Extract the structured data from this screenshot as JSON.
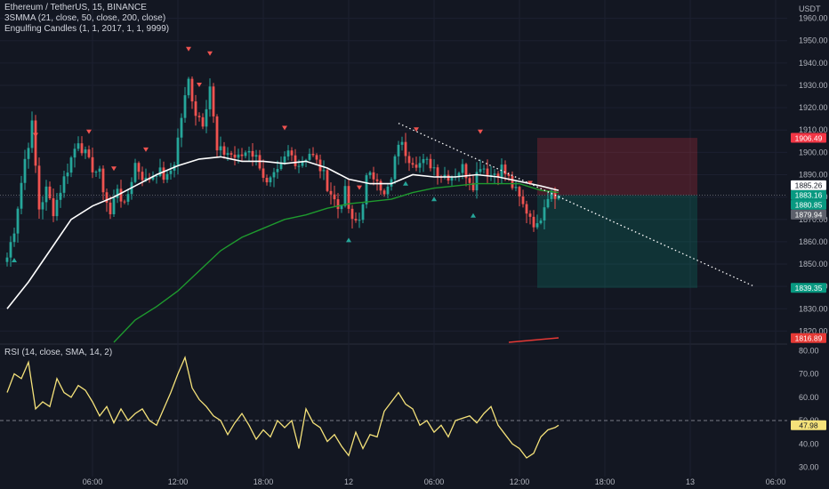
{
  "header": {
    "symbol_line": "Ethereum / TetherUS, 15, BINANCE",
    "indicator_1": "3SMMA (21, close, 50, close, 200, close)",
    "indicator_2": "Engulfing Candles (1, 1, 2017, 1, 1, 9999)",
    "currency": "USDT"
  },
  "rsi_panel": {
    "title": "RSI (14, close, SMA, 14, 2)"
  },
  "colors": {
    "background": "#131722",
    "up": "#26a69a",
    "down": "#ef5350",
    "sma21": "#ffffff",
    "sma50": "#1e9a2e",
    "sma200": "#e53935",
    "rsi": "#f5e27a",
    "stop_zone": "rgba(242,54,69,0.22)",
    "target_zone": "rgba(8,153,129,0.22)"
  },
  "chart_data": [
    {
      "type": "candlestick",
      "title": "Ethereum / TetherUS, 15, BINANCE",
      "ylabel": "USDT",
      "ylim": [
        1815,
        1965
      ],
      "yticks": [
        1820,
        1830,
        1840,
        1850,
        1860,
        1870,
        1880,
        1890,
        1900,
        1910,
        1920,
        1930,
        1940,
        1950,
        1960
      ],
      "ytick_labels": [
        "1820.00",
        "1830.00",
        "1840.00",
        "1850.00",
        "1860.00",
        "1870.00",
        "1880.00",
        "1890.00",
        "1900.00",
        "1910.00",
        "1920.00",
        "1930.00",
        "1940.00",
        "1950.00",
        "1960.00"
      ],
      "xticks": [
        {
          "label": "06:00",
          "bar": 24
        },
        {
          "label": "12:00",
          "bar": 48
        },
        {
          "label": "18:00",
          "bar": 72
        },
        {
          "label": "12",
          "bar": 96
        },
        {
          "label": "06:00",
          "bar": 120
        },
        {
          "label": "12:00",
          "bar": 144
        },
        {
          "label": "18:00",
          "bar": 168
        },
        {
          "label": "13",
          "bar": 192
        },
        {
          "label": "06:00",
          "bar": 216
        }
      ],
      "last_bar": 155,
      "anchors": [
        [
          0,
          1853
        ],
        [
          2,
          1866
        ],
        [
          5,
          1897
        ],
        [
          7,
          1912
        ],
        [
          9,
          1875
        ],
        [
          11,
          1883
        ],
        [
          13,
          1874
        ],
        [
          17,
          1893
        ],
        [
          20,
          1906
        ],
        [
          23,
          1895
        ],
        [
          26,
          1890
        ],
        [
          29,
          1872
        ],
        [
          31,
          1885
        ],
        [
          33,
          1875
        ],
        [
          36,
          1895
        ],
        [
          39,
          1887
        ],
        [
          42,
          1892
        ],
        [
          45,
          1888
        ],
        [
          47,
          1896
        ],
        [
          49,
          1916
        ],
        [
          51,
          1932
        ],
        [
          53,
          1918
        ],
        [
          55,
          1914
        ],
        [
          57,
          1930
        ],
        [
          59,
          1900
        ],
        [
          62,
          1900
        ],
        [
          65,
          1897
        ],
        [
          68,
          1902
        ],
        [
          71,
          1895
        ],
        [
          73,
          1885
        ],
        [
          76,
          1890
        ],
        [
          79,
          1900
        ],
        [
          82,
          1895
        ],
        [
          85,
          1900
        ],
        [
          88,
          1893
        ],
        [
          91,
          1882
        ],
        [
          93,
          1875
        ],
        [
          95,
          1882
        ],
        [
          97,
          1868
        ],
        [
          99,
          1870
        ],
        [
          101,
          1888
        ],
        [
          104,
          1890
        ],
        [
          106,
          1880
        ],
        [
          108,
          1887
        ],
        [
          110,
          1905
        ],
        [
          113,
          1898
        ],
        [
          116,
          1895
        ],
        [
          119,
          1895
        ],
        [
          122,
          1890
        ],
        [
          125,
          1890
        ],
        [
          128,
          1893
        ],
        [
          131,
          1886
        ],
        [
          133,
          1895
        ],
        [
          136,
          1890
        ],
        [
          139,
          1893
        ],
        [
          141,
          1888
        ],
        [
          143,
          1882
        ],
        [
          145,
          1876
        ],
        [
          147,
          1872
        ],
        [
          149,
          1866
        ],
        [
          151,
          1878
        ],
        [
          153,
          1884
        ],
        [
          155,
          1880
        ]
      ],
      "series": [
        {
          "name": "3SMMA 21",
          "points": [
            [
              0,
              1830
            ],
            [
              6,
              1842
            ],
            [
              12,
              1856
            ],
            [
              18,
              1870
            ],
            [
              24,
              1876
            ],
            [
              30,
              1880
            ],
            [
              36,
              1885
            ],
            [
              42,
              1890
            ],
            [
              48,
              1894
            ],
            [
              54,
              1897
            ],
            [
              60,
              1898
            ],
            [
              66,
              1896
            ],
            [
              72,
              1896
            ],
            [
              78,
              1895
            ],
            [
              84,
              1896
            ],
            [
              90,
              1893
            ],
            [
              96,
              1888
            ],
            [
              102,
              1886
            ],
            [
              108,
              1886
            ],
            [
              114,
              1890
            ],
            [
              120,
              1889
            ],
            [
              126,
              1889
            ],
            [
              132,
              1890
            ],
            [
              138,
              1889
            ],
            [
              144,
              1887
            ],
            [
              150,
              1885
            ],
            [
              155,
              1883
            ]
          ]
        },
        {
          "name": "3SMMA 50",
          "points": [
            [
              30,
              1815
            ],
            [
              36,
              1825
            ],
            [
              42,
              1831
            ],
            [
              48,
              1838
            ],
            [
              54,
              1847
            ],
            [
              60,
              1856
            ],
            [
              66,
              1862
            ],
            [
              72,
              1866
            ],
            [
              78,
              1870
            ],
            [
              84,
              1872
            ],
            [
              90,
              1875
            ],
            [
              96,
              1877
            ],
            [
              102,
              1878
            ],
            [
              108,
              1879
            ],
            [
              114,
              1882
            ],
            [
              120,
              1884
            ],
            [
              126,
              1885
            ],
            [
              132,
              1886
            ],
            [
              138,
              1886
            ],
            [
              144,
              1886
            ],
            [
              150,
              1883
            ],
            [
              155,
              1882
            ]
          ]
        },
        {
          "name": "3SMMA 200",
          "points": [
            [
              141,
              1815
            ],
            [
              148,
              1816
            ],
            [
              155,
              1817
            ]
          ]
        }
      ],
      "engulfing_markers": {
        "bearish": [
          8,
          23,
          30,
          39,
          51,
          54,
          57,
          78,
          99,
          115,
          133,
          147
        ],
        "bullish": [
          2,
          96,
          112,
          120,
          131
        ]
      },
      "trendline": {
        "from": [
          110,
          1913
        ],
        "to": [
          210,
          1840
        ]
      },
      "position": {
        "entry": 1880.85,
        "stop": 1906.49,
        "target": 1839.35,
        "from_bar": 149,
        "to_bar": 194
      },
      "price_labels": [
        {
          "value": "1906.49",
          "price": 1906.49,
          "color": "#f23645"
        },
        {
          "value": "1885.26",
          "price": 1885.26,
          "color": "#ffffff"
        },
        {
          "value": "1883.16",
          "price": 1883.16,
          "color": "#089981"
        },
        {
          "value": "1880.85",
          "price": 1880.85,
          "color": "#089981"
        },
        {
          "value": "1879.94",
          "price": 1879.94,
          "color": "#5d606b"
        },
        {
          "value": "1839.35",
          "price": 1839.35,
          "color": "#089981"
        },
        {
          "value": "1816.89",
          "price": 1816.89,
          "color": "#e53935"
        }
      ]
    },
    {
      "type": "line",
      "title": "RSI (14, close, SMA, 14, 2)",
      "ylim": [
        26,
        82
      ],
      "yticks": [
        30,
        40,
        50,
        60,
        70,
        80
      ],
      "ytick_labels": [
        "30.00",
        "40.00",
        "50.00",
        "60.00",
        "70.00",
        "80.00"
      ],
      "midline": 50,
      "current": "47.98",
      "x": [
        0,
        2,
        4,
        6,
        8,
        10,
        12,
        14,
        16,
        18,
        20,
        22,
        24,
        26,
        28,
        30,
        32,
        34,
        36,
        38,
        40,
        42,
        44,
        46,
        48,
        50,
        52,
        54,
        56,
        58,
        60,
        62,
        64,
        66,
        68,
        70,
        72,
        74,
        76,
        78,
        80,
        82,
        84,
        86,
        88,
        90,
        92,
        94,
        96,
        98,
        100,
        102,
        104,
        106,
        108,
        110,
        112,
        114,
        116,
        118,
        120,
        122,
        124,
        126,
        128,
        130,
        132,
        134,
        136,
        138,
        140,
        142,
        144,
        146,
        148,
        150,
        152,
        154,
        155
      ],
      "y": [
        62,
        70,
        68,
        75,
        55,
        58,
        56,
        68,
        62,
        60,
        65,
        63,
        58,
        52,
        56,
        49,
        55,
        50,
        53,
        55,
        50,
        48,
        55,
        62,
        70,
        77,
        64,
        59,
        56,
        52,
        50,
        44,
        49,
        53,
        48,
        42,
        46,
        43,
        50,
        47,
        50,
        38,
        55,
        49,
        47,
        41,
        44,
        39,
        35,
        45,
        38,
        44,
        43,
        54,
        58,
        62,
        57,
        55,
        48,
        50,
        45,
        48,
        43,
        50,
        51,
        52,
        49,
        53,
        56,
        48,
        44,
        40,
        38,
        34,
        36,
        43,
        46,
        47,
        48
      ]
    }
  ]
}
